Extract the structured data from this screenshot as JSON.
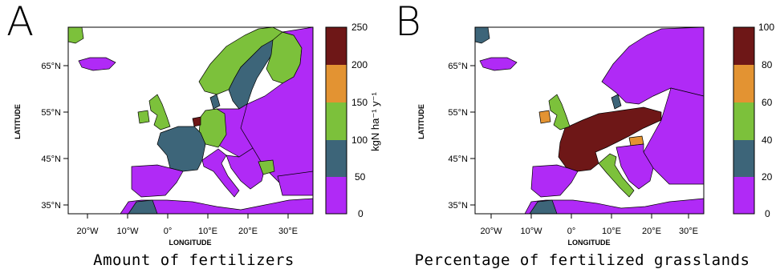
{
  "panels": [
    {
      "letter": "A",
      "caption": "Amount of fertilizers",
      "unit_label": "kgN ha⁻¹ y⁻¹",
      "colorbar": {
        "ticks": [
          "0",
          "50",
          "100",
          "150",
          "200",
          "250"
        ],
        "colors": [
          "#b02af6",
          "#3d6579",
          "#7cc13b",
          "#e39332",
          "#6e1717"
        ]
      },
      "lat_labels": [
        "65°N",
        "55°N",
        "45°N",
        "35°N"
      ],
      "lon_labels": [
        "20°W",
        "10°W",
        "0°",
        "10°E",
        "20°E",
        "30°E"
      ],
      "lat_axis_title": "LATITUDE",
      "lon_axis_title": "LONGITUDE"
    },
    {
      "letter": "B",
      "caption": "Percentage of fertilized grasslands",
      "unit_label": "",
      "colorbar": {
        "ticks": [
          "0",
          "20",
          "40",
          "60",
          "80",
          "100"
        ],
        "colors": [
          "#b02af6",
          "#3d6579",
          "#7cc13b",
          "#e39332",
          "#6e1717"
        ]
      },
      "lat_labels": [
        "65°N",
        "55°N",
        "45°N",
        "35°N"
      ],
      "lon_labels": [
        "20°W",
        "10°W",
        "0°",
        "10°E",
        "20°E",
        "30°E"
      ],
      "lat_axis_title": "LATITUDE",
      "lon_axis_title": "LONGITUDE"
    }
  ]
}
